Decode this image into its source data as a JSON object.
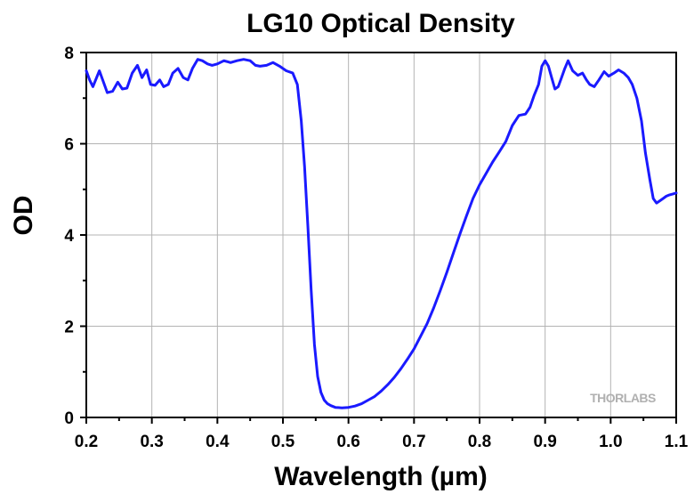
{
  "chart_data": {
    "type": "line",
    "title": "LG10 Optical Density",
    "xlabel": "Wavelength (µm)",
    "ylabel": "OD",
    "xlim": [
      0.2,
      1.1
    ],
    "ylim": [
      0,
      8
    ],
    "grid": true,
    "x_ticks": [
      "0.2",
      "0.3",
      "0.4",
      "0.5",
      "0.6",
      "0.7",
      "0.8",
      "0.9",
      "1.0",
      "1.1"
    ],
    "y_ticks": [
      "0",
      "2",
      "4",
      "6",
      "8"
    ],
    "watermark": "THORLABS",
    "series": [
      {
        "color": "#1a1aff",
        "x": [
          0.2,
          0.205,
          0.21,
          0.22,
          0.225,
          0.232,
          0.24,
          0.248,
          0.255,
          0.262,
          0.27,
          0.278,
          0.285,
          0.292,
          0.298,
          0.305,
          0.312,
          0.318,
          0.325,
          0.332,
          0.34,
          0.348,
          0.355,
          0.362,
          0.37,
          0.377,
          0.385,
          0.392,
          0.4,
          0.41,
          0.42,
          0.43,
          0.44,
          0.45,
          0.458,
          0.465,
          0.475,
          0.485,
          0.495,
          0.505,
          0.515,
          0.522,
          0.528,
          0.533,
          0.538,
          0.543,
          0.548,
          0.553,
          0.558,
          0.563,
          0.568,
          0.573,
          0.58,
          0.59,
          0.6,
          0.61,
          0.62,
          0.63,
          0.64,
          0.65,
          0.66,
          0.67,
          0.68,
          0.69,
          0.7,
          0.71,
          0.72,
          0.73,
          0.74,
          0.75,
          0.76,
          0.77,
          0.78,
          0.79,
          0.8,
          0.81,
          0.82,
          0.83,
          0.84,
          0.85,
          0.86,
          0.87,
          0.877,
          0.883,
          0.89,
          0.895,
          0.9,
          0.905,
          0.91,
          0.915,
          0.92,
          0.925,
          0.93,
          0.935,
          0.942,
          0.95,
          0.957,
          0.963,
          0.968,
          0.975,
          0.982,
          0.99,
          0.997,
          1.005,
          1.012,
          1.02,
          1.027,
          1.033,
          1.04,
          1.047,
          1.053,
          1.06,
          1.065,
          1.07,
          1.075,
          1.08,
          1.085,
          1.09,
          1.095,
          1.1
        ],
        "y": [
          7.6,
          7.4,
          7.25,
          7.6,
          7.4,
          7.12,
          7.15,
          7.35,
          7.2,
          7.22,
          7.55,
          7.72,
          7.45,
          7.62,
          7.3,
          7.28,
          7.4,
          7.25,
          7.3,
          7.55,
          7.65,
          7.45,
          7.4,
          7.65,
          7.85,
          7.82,
          7.75,
          7.72,
          7.75,
          7.82,
          7.78,
          7.82,
          7.85,
          7.82,
          7.72,
          7.7,
          7.72,
          7.78,
          7.7,
          7.6,
          7.55,
          7.3,
          6.5,
          5.5,
          4.2,
          2.8,
          1.6,
          0.9,
          0.55,
          0.38,
          0.3,
          0.26,
          0.22,
          0.21,
          0.22,
          0.25,
          0.3,
          0.38,
          0.46,
          0.58,
          0.72,
          0.88,
          1.07,
          1.28,
          1.5,
          1.78,
          2.06,
          2.4,
          2.78,
          3.18,
          3.6,
          4.02,
          4.42,
          4.8,
          5.1,
          5.35,
          5.6,
          5.82,
          6.05,
          6.4,
          6.62,
          6.65,
          6.8,
          7.05,
          7.3,
          7.7,
          7.82,
          7.7,
          7.45,
          7.2,
          7.25,
          7.45,
          7.65,
          7.82,
          7.6,
          7.5,
          7.55,
          7.4,
          7.3,
          7.25,
          7.4,
          7.58,
          7.48,
          7.55,
          7.62,
          7.55,
          7.45,
          7.3,
          7.0,
          6.5,
          5.8,
          5.2,
          4.8,
          4.7,
          4.75,
          4.8,
          4.85,
          4.88,
          4.9,
          4.92
        ]
      }
    ]
  }
}
